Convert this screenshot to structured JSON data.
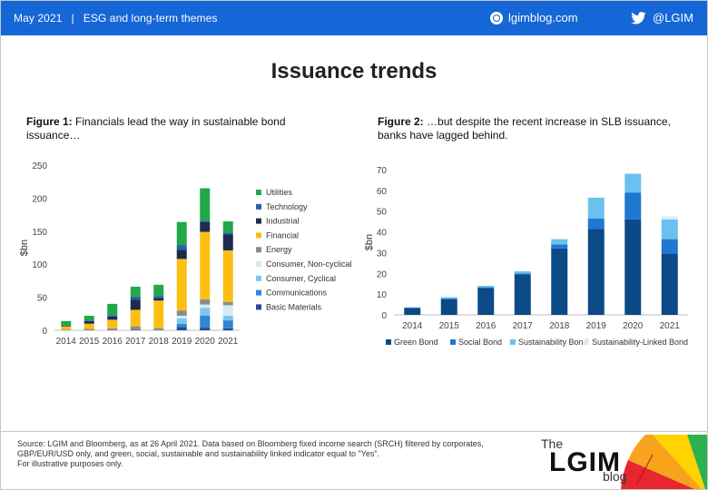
{
  "header": {
    "date": "May 2021",
    "separator": "|",
    "section": "ESG and long-term themes",
    "site": "lgimblog.com",
    "twitter": "@LGIM",
    "brand_color": "#1566d6",
    "site_icon": "globe-icon",
    "twitter_icon": "twitter-bird-icon"
  },
  "page": {
    "title": "Issuance trends"
  },
  "figure1": {
    "label": "Figure 1:",
    "caption": "Financials lead the way in sustainable bond issuance…"
  },
  "figure2": {
    "label": "Figure 2:",
    "caption": "…but despite the recent increase in SLB issuance, banks have lagged behind."
  },
  "footer": {
    "source": "Source: LGIM and Bloomberg, as at 26 April 2021. Data based on Bloomberg fixed income search (SRCH) filtered by corporates, GBP/EUR/USD only, and green, social, sustainable and sustainability linked indicator equal to \"Yes\".",
    "note": "For illustrative purposes only.",
    "logo_the": "The",
    "logo_lgim": "LGIM",
    "logo_blog": "blog"
  },
  "chart_data": [
    {
      "type": "bar",
      "stacked": true,
      "title": "",
      "xlabel": "",
      "ylabel": "$bn",
      "ylim": [
        0,
        250
      ],
      "yticks": [
        0,
        50,
        100,
        150,
        200,
        250
      ],
      "categories": [
        "2014",
        "2015",
        "2016",
        "2017",
        "2018",
        "2019",
        "2020",
        "2021"
      ],
      "legend_position": "right",
      "series": [
        {
          "name": "Basic Materials",
          "color": "#1f4e8c",
          "values": [
            0,
            0,
            0,
            1,
            0,
            5,
            4,
            3
          ]
        },
        {
          "name": "Communications",
          "color": "#2f86d6",
          "values": [
            0,
            0,
            0,
            0,
            0,
            5,
            18,
            12
          ]
        },
        {
          "name": "Consumer, Cyclical",
          "color": "#7fc4ee",
          "values": [
            0,
            0,
            0,
            0,
            0,
            8,
            12,
            7
          ]
        },
        {
          "name": "Consumer, Non-cyclical",
          "color": "#d6eaf8",
          "values": [
            0,
            0,
            0,
            0,
            0,
            4,
            5,
            16
          ]
        },
        {
          "name": "Energy",
          "color": "#8c8c8c",
          "values": [
            1,
            2,
            3,
            5,
            3,
            8,
            8,
            5
          ]
        },
        {
          "name": "Financial",
          "color": "#fbbf14",
          "values": [
            5,
            8,
            13,
            25,
            42,
            78,
            102,
            78
          ]
        },
        {
          "name": "Industrial",
          "color": "#1d2b4f",
          "values": [
            1,
            4,
            5,
            15,
            4,
            14,
            15,
            24
          ]
        },
        {
          "name": "Technology",
          "color": "#2a5ea8",
          "values": [
            0,
            1,
            2,
            5,
            3,
            7,
            2,
            3
          ]
        },
        {
          "name": "Utilities",
          "color": "#21a84a",
          "values": [
            7,
            7,
            17,
            15,
            17,
            35,
            49,
            17
          ]
        }
      ]
    },
    {
      "type": "bar",
      "stacked": true,
      "title": "",
      "xlabel": "",
      "ylabel": "$bn",
      "ylim": [
        0,
        70
      ],
      "yticks": [
        0,
        10,
        20,
        30,
        40,
        50,
        60,
        70
      ],
      "categories": [
        "2014",
        "2015",
        "2016",
        "2017",
        "2018",
        "2019",
        "2020",
        "2021"
      ],
      "legend_position": "bottom",
      "series": [
        {
          "name": "Green Bond",
          "color": "#0b4a86",
          "values": [
            3.2,
            7.5,
            13,
            19.5,
            32,
            41.5,
            46,
            29.5
          ]
        },
        {
          "name": "Social Bond",
          "color": "#1f78d1",
          "values": [
            0.3,
            0.5,
            0.3,
            0.5,
            2,
            5,
            13,
            7
          ]
        },
        {
          "name": "Sustainability Bond",
          "color": "#6cc0ee",
          "values": [
            0.2,
            0.5,
            0.7,
            1,
            2.5,
            10,
            9,
            9.5
          ]
        },
        {
          "name": "Sustainability-Linked Bond",
          "color": "#d8ebf8",
          "values": [
            0,
            0,
            0,
            0,
            0,
            0,
            0.2,
            1.5
          ]
        }
      ]
    }
  ]
}
